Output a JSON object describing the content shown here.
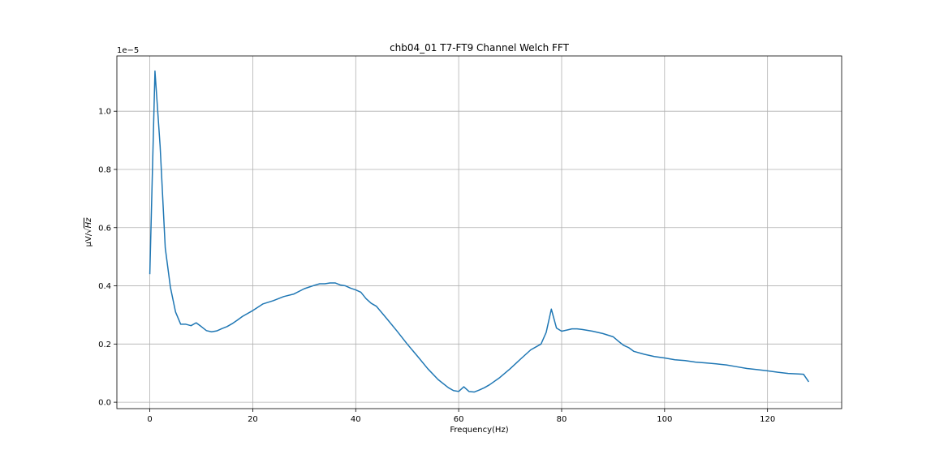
{
  "chart_data": {
    "type": "line",
    "title": "chb04_01 T7-FT9 Channel Welch FFT",
    "xlabel": "Frequency(Hz)",
    "ylabel_prefix": "μV/",
    "ylabel_radical": "√",
    "ylabel_unit": "Hz",
    "offset_text": "1e−5",
    "xlim": [
      -6.4,
      134.4
    ],
    "ylim": [
      -0.022,
      1.19
    ],
    "x_ticks": [
      0,
      20,
      40,
      60,
      80,
      100,
      120
    ],
    "x_tick_labels": [
      "0",
      "20",
      "40",
      "60",
      "80",
      "100",
      "120"
    ],
    "y_ticks": [
      0.0,
      0.2,
      0.4,
      0.6,
      0.8,
      1.0
    ],
    "y_tick_labels": [
      "0.0",
      "0.2",
      "0.4",
      "0.6",
      "0.8",
      "1.0"
    ],
    "grid": true,
    "color": "#1f77b4",
    "series": [
      {
        "x": [
          0,
          1,
          2,
          3,
          4,
          5,
          6,
          7,
          8,
          9,
          10,
          11,
          12,
          13,
          14,
          15,
          16,
          17,
          18,
          20,
          22,
          24,
          26,
          28,
          30,
          32,
          33,
          34,
          35,
          36,
          37,
          38,
          39,
          40,
          41,
          42,
          43,
          44,
          46,
          48,
          50,
          52,
          54,
          56,
          58,
          59,
          60,
          61,
          62,
          63,
          64,
          65,
          66,
          68,
          70,
          72,
          74,
          75,
          76,
          77,
          78,
          79,
          80,
          81,
          82,
          83,
          84,
          86,
          88,
          90,
          91,
          92,
          93,
          94,
          96,
          98,
          100,
          102,
          104,
          106,
          108,
          110,
          112,
          114,
          116,
          118,
          120,
          122,
          124,
          126,
          127,
          128
        ],
        "y": [
          0.44,
          1.138,
          0.88,
          0.53,
          0.395,
          0.31,
          0.268,
          0.268,
          0.263,
          0.273,
          0.26,
          0.246,
          0.242,
          0.245,
          0.253,
          0.26,
          0.27,
          0.282,
          0.295,
          0.315,
          0.338,
          0.349,
          0.363,
          0.372,
          0.39,
          0.402,
          0.407,
          0.407,
          0.41,
          0.41,
          0.403,
          0.4,
          0.392,
          0.386,
          0.378,
          0.356,
          0.34,
          0.33,
          0.288,
          0.245,
          0.2,
          0.158,
          0.115,
          0.078,
          0.05,
          0.04,
          0.037,
          0.053,
          0.037,
          0.035,
          0.042,
          0.05,
          0.06,
          0.085,
          0.115,
          0.148,
          0.18,
          0.19,
          0.2,
          0.24,
          0.32,
          0.255,
          0.244,
          0.248,
          0.252,
          0.252,
          0.25,
          0.244,
          0.236,
          0.225,
          0.21,
          0.196,
          0.188,
          0.175,
          0.165,
          0.157,
          0.152,
          0.146,
          0.143,
          0.138,
          0.135,
          0.132,
          0.128,
          0.122,
          0.116,
          0.112,
          0.108,
          0.103,
          0.099,
          0.097,
          0.096,
          0.07
        ]
      }
    ]
  }
}
